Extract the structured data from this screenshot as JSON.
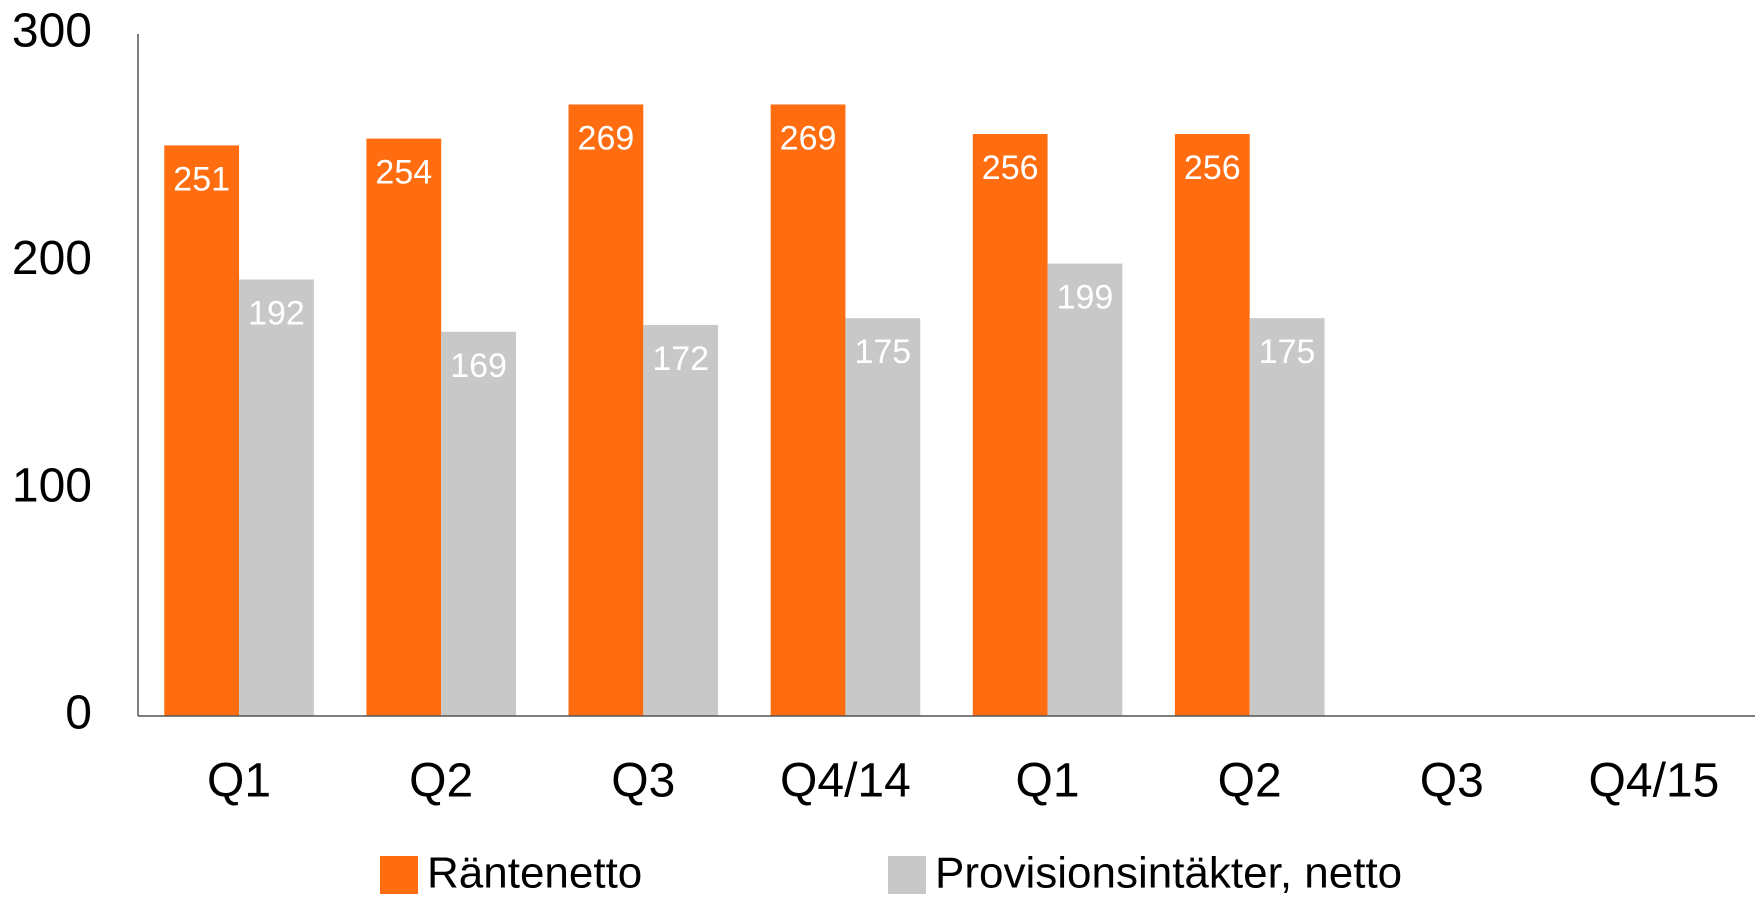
{
  "chart_data": {
    "type": "bar",
    "categories": [
      "Q1",
      "Q2",
      "Q3",
      "Q4/14",
      "Q1",
      "Q2",
      "Q3",
      "Q4/15"
    ],
    "series": [
      {
        "name": "Räntenetto",
        "color": "#ff6d10",
        "values": [
          251,
          254,
          269,
          269,
          256,
          256,
          null,
          null
        ]
      },
      {
        "name": "Provisionsintäkter, netto",
        "color": "#c8c8c8",
        "values": [
          192,
          169,
          172,
          175,
          199,
          175,
          null,
          null
        ]
      }
    ],
    "ylim": [
      0,
      300
    ],
    "yticks": [
      0,
      100,
      200,
      300
    ],
    "grid": false,
    "legend": "bottom"
  }
}
